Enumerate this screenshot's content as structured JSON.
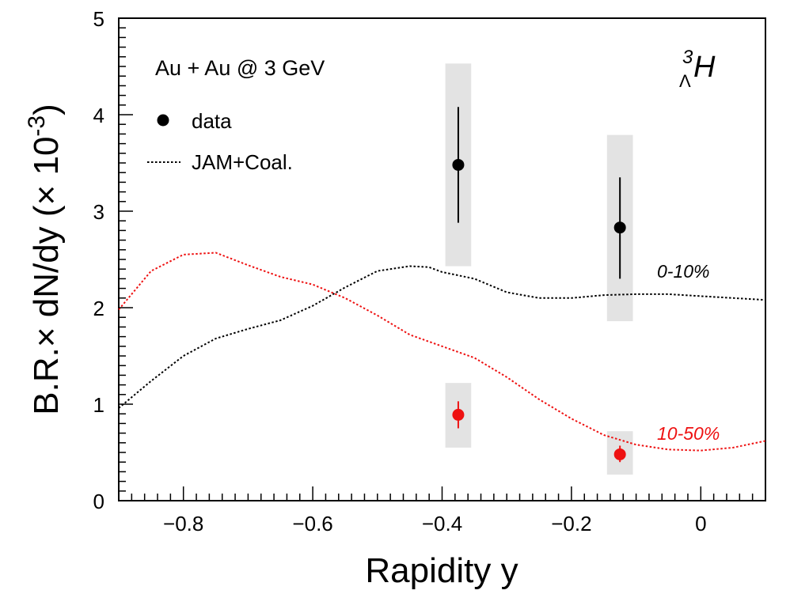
{
  "chart_data": {
    "type": "scatter",
    "title": "",
    "xlabel": "Rapidity y",
    "ylabel_main": "B.R.× dN/dy (× 10",
    "ylabel_exponent": "-3",
    "ylabel_close": ")",
    "xlim": [
      -0.9,
      0.1
    ],
    "ylim": [
      0,
      5
    ],
    "xticks": [
      -0.8,
      -0.6,
      -0.4,
      -0.2,
      0
    ],
    "xtick_labels": [
      "−0.8",
      "−0.6",
      "−0.4",
      "−0.2",
      "0"
    ],
    "yticks": [
      0,
      1,
      2,
      3,
      4,
      5
    ],
    "ytick_labels": [
      "0",
      "1",
      "2",
      "3",
      "4",
      "5"
    ],
    "grid": false,
    "annotation_system": "Au + Au @ 3 GeV",
    "particle_label": {
      "superscript": "3",
      "subscript": "Λ",
      "symbol": "H"
    },
    "legend": {
      "placement": "top-left",
      "entries": [
        {
          "label": "data",
          "marker": "circle"
        },
        {
          "label": "JAM+Coal.",
          "marker": "dotted-line"
        }
      ]
    },
    "series": [
      {
        "label": "0-10%",
        "color": "#000000",
        "points": [
          {
            "x": -0.375,
            "y": 3.48,
            "stat_lo": 2.88,
            "stat_hi": 4.08,
            "sys_lo": 2.43,
            "sys_hi": 4.53
          },
          {
            "x": -0.125,
            "y": 2.83,
            "stat_lo": 2.3,
            "stat_hi": 3.35,
            "sys_lo": 1.86,
            "sys_hi": 3.79
          }
        ],
        "model_curve": {
          "x": [
            -0.9,
            -0.85,
            -0.8,
            -0.75,
            -0.7,
            -0.65,
            -0.6,
            -0.55,
            -0.5,
            -0.45,
            -0.42,
            -0.4,
            -0.35,
            -0.3,
            -0.25,
            -0.2,
            -0.15,
            -0.1,
            -0.05,
            0,
            0.05,
            0.1
          ],
          "y": [
            0.96,
            1.24,
            1.5,
            1.68,
            1.78,
            1.87,
            2.02,
            2.21,
            2.38,
            2.43,
            2.42,
            2.37,
            2.3,
            2.16,
            2.1,
            2.1,
            2.13,
            2.14,
            2.14,
            2.12,
            2.1,
            2.08
          ]
        }
      },
      {
        "label": "10-50%",
        "color": "#ee1111",
        "points": [
          {
            "x": -0.375,
            "y": 0.89,
            "stat_lo": 0.75,
            "stat_hi": 1.03,
            "sys_lo": 0.55,
            "sys_hi": 1.22
          },
          {
            "x": -0.125,
            "y": 0.48,
            "stat_lo": 0.4,
            "stat_hi": 0.57,
            "sys_lo": 0.27,
            "sys_hi": 0.72
          }
        ],
        "model_curve": {
          "x": [
            -0.9,
            -0.85,
            -0.8,
            -0.75,
            -0.7,
            -0.65,
            -0.6,
            -0.55,
            -0.5,
            -0.45,
            -0.4,
            -0.35,
            -0.3,
            -0.25,
            -0.2,
            -0.15,
            -0.1,
            -0.05,
            0,
            0.05,
            0.1
          ],
          "y": [
            1.98,
            2.38,
            2.55,
            2.57,
            2.44,
            2.32,
            2.24,
            2.1,
            1.92,
            1.72,
            1.6,
            1.48,
            1.28,
            1.05,
            0.85,
            0.68,
            0.58,
            0.53,
            0.52,
            0.55,
            0.62
          ]
        }
      }
    ]
  }
}
